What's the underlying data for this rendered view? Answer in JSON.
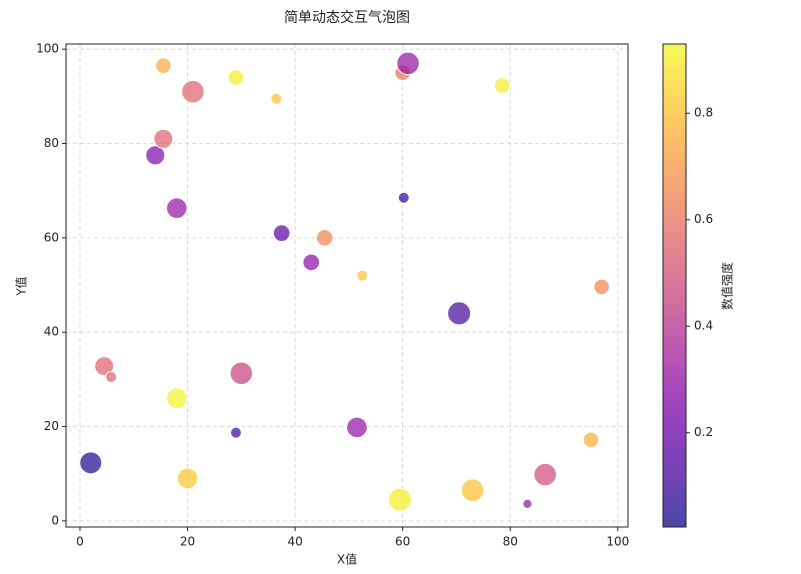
{
  "chart_data": {
    "type": "scatter",
    "title": "简单动态交互气泡图",
    "x_label": "X值",
    "y_label": "Y值",
    "x": [
      2,
      4.5,
      5.8,
      14,
      15.5,
      15.5,
      18,
      18,
      20,
      21,
      29,
      29,
      30,
      36.5,
      37.5,
      43,
      45.5,
      51.5,
      52.5,
      59.5,
      60,
      60.2,
      61,
      70.5,
      73,
      78.5,
      83.2,
      86.5,
      95,
      97
    ],
    "y": [
      12.3,
      32.8,
      30.5,
      77.5,
      96.5,
      81,
      66.3,
      26,
      9,
      91,
      94,
      18.7,
      31.3,
      89.5,
      61,
      54.8,
      60,
      19.8,
      52,
      4.5,
      95,
      68.5,
      97,
      44,
      6.5,
      92.3,
      3.6,
      9.8,
      17.2,
      49.6
    ],
    "sizes": [
      400,
      300,
      100,
      300,
      200,
      300,
      350,
      350,
      350,
      420,
      200,
      100,
      420,
      100,
      230,
      230,
      230,
      350,
      100,
      440,
      200,
      100,
      420,
      440,
      420,
      200,
      70,
      420,
      200,
      200
    ],
    "color_values": [
      0.05,
      0.55,
      0.55,
      0.25,
      0.75,
      0.55,
      0.3,
      0.92,
      0.82,
      0.55,
      0.9,
      0.1,
      0.45,
      0.8,
      0.15,
      0.28,
      0.65,
      0.3,
      0.8,
      0.9,
      0.6,
      0.08,
      0.3,
      0.12,
      0.8,
      0.9,
      0.3,
      0.48,
      0.75,
      0.65
    ],
    "colormap": "plasma",
    "xlim": [
      -2.6,
      101.9
    ],
    "xticks": [
      0,
      20,
      40,
      60,
      80,
      100
    ],
    "ylim": [
      -1.3,
      101.1
    ],
    "yticks": [
      0,
      20,
      40,
      60,
      80,
      100
    ],
    "grid": true,
    "colorbar": {
      "label": "数值强度",
      "lim": [
        0.023,
        0.93
      ],
      "ticks": [
        0.2,
        0.4,
        0.6,
        0.8
      ]
    }
  }
}
